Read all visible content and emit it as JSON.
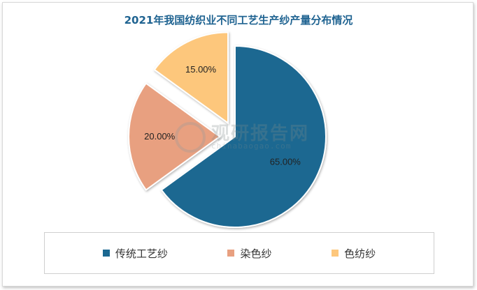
{
  "chart_data": {
    "type": "pie",
    "title": "2021年我国纺织业不同工艺生产纱产量分布情况",
    "categories": [
      "传统工艺纱",
      "染色纱",
      "色纺纱"
    ],
    "values": [
      65.0,
      20.0,
      15.0
    ],
    "labels": [
      "65.00%",
      "20.00%",
      "15.00%"
    ],
    "colors": [
      "#1b6891",
      "#e8a080",
      "#fdc77c"
    ],
    "exploded": [
      false,
      true,
      true
    ],
    "legend_position": "bottom"
  },
  "watermark": {
    "name": "观研报告网",
    "url": "chinabaogao.com"
  }
}
